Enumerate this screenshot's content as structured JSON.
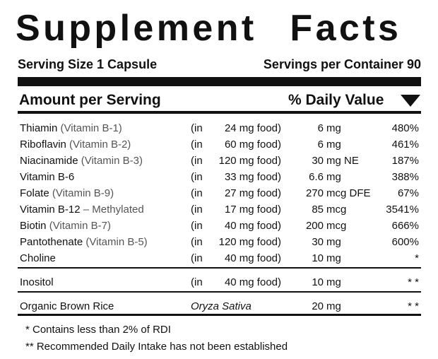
{
  "title": "Supplement Facts",
  "serving_size": "Serving Size 1 Capsule",
  "servings_per_container": "Servings per Container 90",
  "header": {
    "amount": "Amount per Serving",
    "daily_value": "% Daily Value"
  },
  "groups": [
    [
      {
        "name": "Thiamin",
        "sub": "(Vitamin B-1)",
        "source_in": "(in",
        "source": "24 mg food)",
        "amount": "6",
        "unit": "mg",
        "dv": "480%"
      },
      {
        "name": "Riboflavin",
        "sub": "(Vitamin B-2)",
        "source_in": "(in",
        "source": "60 mg food)",
        "amount": "6",
        "unit": "mg",
        "dv": "461%"
      },
      {
        "name": "Niacinamide",
        "sub": "(Vitamin B-3)",
        "source_in": "(in",
        "source": "120 mg food)",
        "amount": "30",
        "unit": "mg NE",
        "dv": "187%"
      },
      {
        "name": "Vitamin B-6",
        "source_in": "(in",
        "source": "33 mg food)",
        "amount": "6.6",
        "unit": "mg",
        "dv": "388%"
      },
      {
        "name": "Folate",
        "sub": "(Vitamin B-9)",
        "source_in": "(in",
        "source": "27 mg food)",
        "amount": "270",
        "unit": "mcg DFE",
        "dv": "67%"
      },
      {
        "name": "Vitamin B-12",
        "sub": "– Methylated",
        "source_in": "(in",
        "source": "17 mg food)",
        "amount": "85",
        "unit": "mcg",
        "dv": "3541%"
      },
      {
        "name": "Biotin",
        "sub": "(Vitamin B-7)",
        "source_in": "(in",
        "source": "40 mg food)",
        "amount": "200",
        "unit": "mcg",
        "dv": "666%"
      },
      {
        "name": "Pantothenate",
        "sub": "(Vitamin B-5)",
        "source_in": "(in",
        "source": "120 mg food)",
        "amount": "30",
        "unit": "mg",
        "dv": "600%"
      },
      {
        "name": "Choline",
        "source_in": "(in",
        "source": "40 mg food)",
        "amount": "10",
        "unit": "mg",
        "dv": "*"
      }
    ],
    [
      {
        "name": "Inositol",
        "source_in": "(in",
        "source": "40 mg food)",
        "amount": "10",
        "unit": "mg",
        "dv": "* *"
      }
    ],
    [
      {
        "name": "Organic Brown Rice",
        "species": "Oryza Sativa",
        "amount": "20",
        "unit": "mg",
        "dv": "* *"
      }
    ]
  ],
  "footnotes": [
    "* Contains less than 2% of RDI",
    "** Recommended Daily Intake has not been established"
  ]
}
